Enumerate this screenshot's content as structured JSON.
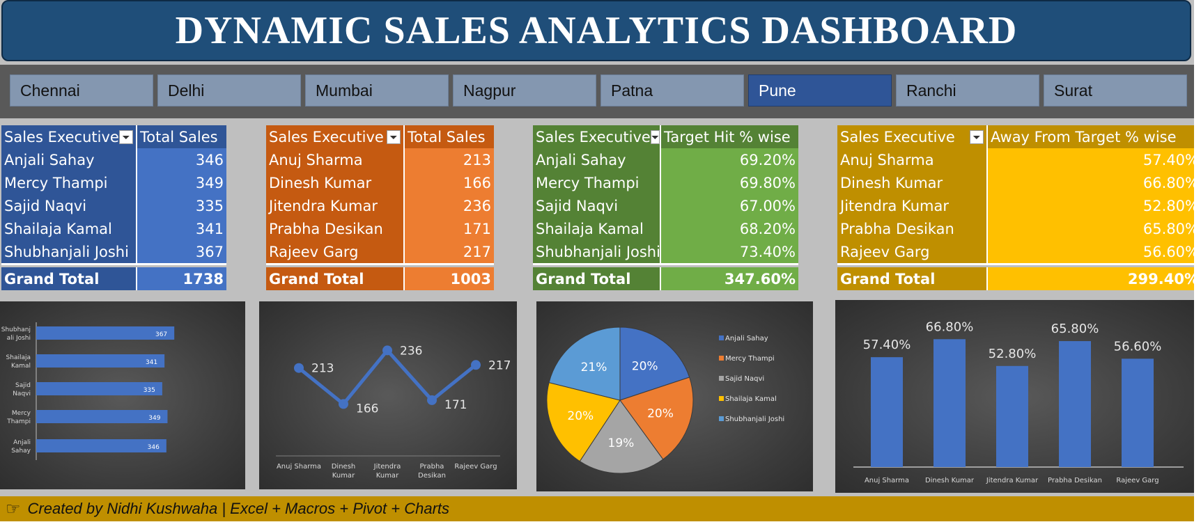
{
  "header": {
    "title": "DYNAMIC SALES ANALYTICS DASHBOARD"
  },
  "slicer": {
    "items": [
      "Chennai",
      "Delhi",
      "Mumbai",
      "Nagpur",
      "Patna",
      "Pune",
      "Ranchi",
      "Surat"
    ],
    "selected": "Pune"
  },
  "tables": {
    "t1": {
      "headers": [
        "Sales Executive",
        "Total Sales"
      ],
      "rows": [
        [
          "Anjali Sahay",
          "346"
        ],
        [
          "Mercy Thampi",
          "349"
        ],
        [
          "Sajid Naqvi",
          "335"
        ],
        [
          "Shailaja Kamal",
          "341"
        ],
        [
          "Shubhanjali Joshi",
          "367"
        ]
      ],
      "grand_total_label": "Grand Total",
      "grand_total_value": "1738"
    },
    "t2": {
      "headers": [
        "Sales Executive",
        "Total Sales"
      ],
      "rows": [
        [
          "Anuj Sharma",
          "213"
        ],
        [
          "Dinesh Kumar",
          "166"
        ],
        [
          "Jitendra Kumar",
          "236"
        ],
        [
          "Prabha Desikan",
          "171"
        ],
        [
          "Rajeev Garg",
          "217"
        ]
      ],
      "grand_total_label": "Grand Total",
      "grand_total_value": "1003"
    },
    "t3": {
      "headers": [
        "Sales Executive",
        "Target Hit % wise"
      ],
      "rows": [
        [
          "Anjali Sahay",
          "69.20%"
        ],
        [
          "Mercy Thampi",
          "69.80%"
        ],
        [
          "Sajid Naqvi",
          "67.00%"
        ],
        [
          "Shailaja Kamal",
          "68.20%"
        ],
        [
          "Shubhanjali Joshi",
          "73.40%"
        ]
      ],
      "grand_total_label": "Grand Total",
      "grand_total_value": "347.60%"
    },
    "t4": {
      "headers": [
        "Sales Executive",
        "Away From Target % wise"
      ],
      "rows": [
        [
          "Anuj Sharma",
          "57.40%"
        ],
        [
          "Dinesh Kumar",
          "66.80%"
        ],
        [
          "Jitendra Kumar",
          "52.80%"
        ],
        [
          "Prabha Desikan",
          "65.80%"
        ],
        [
          "Rajeev Garg",
          "56.60%"
        ]
      ],
      "grand_total_label": "Grand Total",
      "grand_total_value": "299.40%"
    }
  },
  "chart_data": [
    {
      "type": "bar",
      "orientation": "horizontal",
      "categories": [
        "Shubhanjali Joshi",
        "Shailaja Kamal",
        "Sajid Naqvi",
        "Mercy Thampi",
        "Anjali Sahay"
      ],
      "values": [
        367,
        341,
        335,
        349,
        346
      ],
      "data_labels": [
        "367",
        "341",
        "335",
        "349",
        "346"
      ],
      "grid": false,
      "color": "#4472c4"
    },
    {
      "type": "line",
      "categories": [
        "Anuj Sharma",
        "Dinesh Kumar",
        "Jitendra Kumar",
        "Prabha Desikan",
        "Rajeev Garg"
      ],
      "values": [
        213,
        166,
        236,
        171,
        217
      ],
      "data_labels": [
        "213",
        "166",
        "236",
        "171",
        "217"
      ],
      "grid": false,
      "color": "#4472c4"
    },
    {
      "type": "pie",
      "categories": [
        "Anjali Sahay",
        "Mercy Thampi",
        "Sajid Naqvi",
        "Shailaja Kamal",
        "Shubhanjali Joshi"
      ],
      "values": [
        69.2,
        69.8,
        67.0,
        68.2,
        73.4
      ],
      "data_labels": [
        "20%",
        "20%",
        "19%",
        "20%",
        "21%"
      ],
      "colors": [
        "#4472c4",
        "#ed7d31",
        "#a5a5a5",
        "#ffc000",
        "#5b9bd5"
      ],
      "legend": "right"
    },
    {
      "type": "bar",
      "orientation": "vertical",
      "categories": [
        "Anuj Sharma",
        "Dinesh Kumar",
        "Jitendra Kumar",
        "Prabha Desikan",
        "Rajeev Garg"
      ],
      "values": [
        57.4,
        66.8,
        52.8,
        65.8,
        56.6
      ],
      "data_labels": [
        "57.40%",
        "66.80%",
        "52.80%",
        "65.80%",
        "56.60%"
      ],
      "grid": false,
      "color": "#4472c4"
    }
  ],
  "footer": {
    "icon": "pointing-hand-icon",
    "text": "Created by Nidhi Kushwaha | Excel + Macros + Pivot + Charts"
  },
  "colors": {
    "header_bg": "#1f4e79",
    "slicer_bg": "#8497b0",
    "slicer_selected": "#2f5597",
    "t1_label": "#2f5597",
    "t1_value": "#4472c4",
    "t2_label": "#c55a11",
    "t2_value": "#ed7d31",
    "t3_label": "#548235",
    "t3_value": "#70ad47",
    "t4_label": "#bf8f00",
    "t4_value": "#ffc000",
    "footer_bg": "#bf8f00"
  }
}
